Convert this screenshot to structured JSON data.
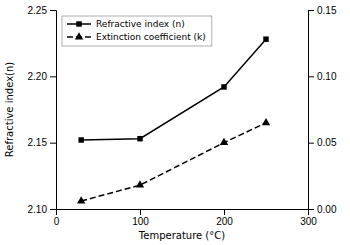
{
  "chart_data": {
    "type": "line",
    "xlabel": "Temperature (°C)",
    "ylabel": "Refractive index(n)",
    "x": [
      30,
      100,
      200,
      250
    ],
    "xlim": [
      0,
      300
    ],
    "xticks": [
      0,
      100,
      200,
      300
    ],
    "ylim": [
      2.1,
      2.25
    ],
    "yticks": [
      {
        "value": 2.1,
        "label": "2.10"
      },
      2.15,
      {
        "value": 2.2,
        "label": "2.20"
      },
      2.25
    ],
    "y2lim": [
      0.0,
      0.15
    ],
    "y2ticks": [
      {
        "value": 0,
        "label": "0.00"
      },
      0.05,
      {
        "value": 0.1,
        "label": "0.10"
      },
      0.15
    ],
    "grid": false,
    "legend": "upper-left",
    "series": [
      {
        "name": "Refractive index (n)",
        "color": "black",
        "marker": "square",
        "line_style": "solid",
        "values": [
          2.152,
          2.153,
          2.192,
          2.228
        ]
      },
      {
        "name": "Extinction coefficient (k)",
        "color": "black",
        "marker": "triangle",
        "line_style": "dashed",
        "axis": "y2",
        "values": [
          0.006,
          0.018,
          0.05,
          0.065
        ]
      }
    ]
  }
}
